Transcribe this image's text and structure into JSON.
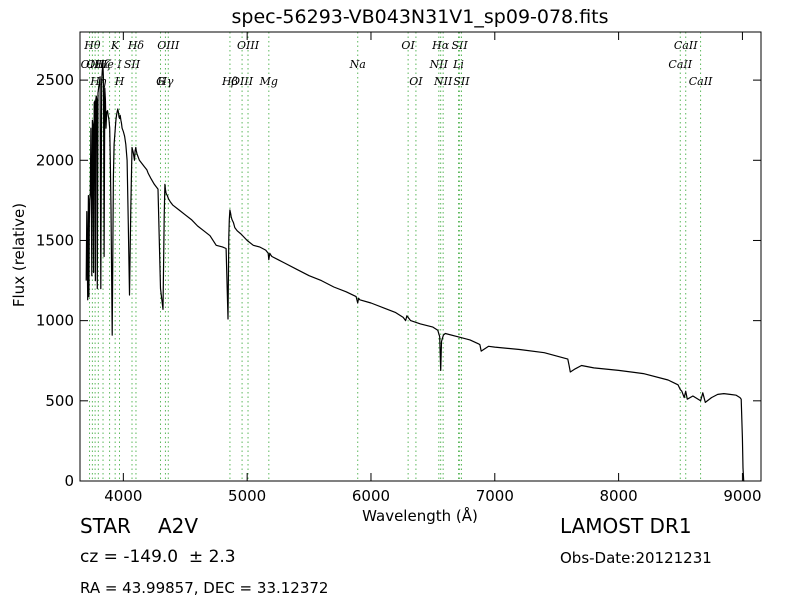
{
  "chart_data": {
    "type": "line",
    "title": "spec-56293-VB043N31V1_sp09-078.fits",
    "xlabel": "Wavelength (Å)",
    "ylabel": "Flux (relative)",
    "xlim": [
      3650,
      9150
    ],
    "ylim": [
      0,
      2800
    ],
    "x_ticks": [
      4000,
      5000,
      6000,
      7000,
      8000,
      9000
    ],
    "y_ticks": [
      0,
      500,
      1000,
      1500,
      2000,
      2500
    ],
    "grid": false,
    "series": [
      {
        "color": "#000000",
        "x": [
          3700,
          3705,
          3712,
          3718,
          3722,
          3725,
          3728,
          3733,
          3738,
          3745,
          3750,
          3755,
          3760,
          3765,
          3770,
          3774,
          3778,
          3782,
          3786,
          3790,
          3795,
          3800,
          3806,
          3812,
          3818,
          3825,
          3830,
          3835,
          3840,
          3845,
          3850,
          3855,
          3860,
          3866,
          3872,
          3878,
          3884,
          3890,
          3895,
          3900,
          3905,
          3910,
          3915,
          3920,
          3925,
          3930,
          3935,
          3940,
          3945,
          3950,
          3955,
          3960,
          3965,
          3970,
          3975,
          3980,
          3985,
          3990,
          4000,
          4010,
          4020,
          4030,
          4040,
          4050,
          4060,
          4070,
          4080,
          4090,
          4095,
          4101,
          4105,
          4110,
          4115,
          4120,
          4130,
          4150,
          4170,
          4190,
          4200,
          4220,
          4250,
          4280,
          4300,
          4320,
          4330,
          4336,
          4340,
          4344,
          4348,
          4355,
          4365,
          4380,
          4400,
          4450,
          4500,
          4550,
          4600,
          4650,
          4700,
          4750,
          4800,
          4830,
          4845,
          4852,
          4856,
          4861,
          4866,
          4870,
          4878,
          4890,
          4900,
          4920,
          4950,
          5000,
          5050,
          5100,
          5150,
          5170,
          5175,
          5183,
          5190,
          5200,
          5250,
          5300,
          5400,
          5500,
          5600,
          5700,
          5800,
          5880,
          5893,
          5900,
          5910,
          6000,
          6100,
          6200,
          6260,
          6280,
          6290,
          6300,
          6320,
          6400,
          6500,
          6540,
          6555,
          6563,
          6570,
          6585,
          6600,
          6700,
          6800,
          6870,
          6880,
          6890,
          6950,
          7000,
          7200,
          7400,
          7590,
          7600,
          7610,
          7650,
          7700,
          7800,
          8000,
          8200,
          8400,
          8480,
          8498,
          8510,
          8530,
          8542,
          8555,
          8600,
          8662,
          8680,
          8700,
          8750,
          8800,
          8850,
          8900,
          8950,
          8980,
          8990,
          9000,
          9005,
          9010,
          9015
        ],
        "y": [
          1250,
          1680,
          1130,
          1780,
          1150,
          1600,
          1750,
          1800,
          2200,
          1280,
          2250,
          2220,
          1300,
          2360,
          2370,
          1250,
          2380,
          2400,
          2380,
          1200,
          2420,
          2450,
          2480,
          2520,
          1200,
          2500,
          2560,
          2600,
          2500,
          1400,
          2450,
          2380,
          2200,
          2300,
          2310,
          2280,
          2250,
          2200,
          2000,
          1700,
          1300,
          910,
          1400,
          1900,
          2100,
          2150,
          2200,
          2250,
          2280,
          2300,
          2320,
          2300,
          2270,
          2260,
          2280,
          2250,
          2230,
          2200,
          2180,
          2150,
          2100,
          2000,
          1600,
          1160,
          1700,
          2080,
          2050,
          2000,
          2060,
          2080,
          2060,
          2040,
          2030,
          2020,
          2000,
          1980,
          1960,
          1940,
          1920,
          1890,
          1850,
          1820,
          1200,
          1070,
          1650,
          1850,
          1820,
          1800,
          1790,
          1780,
          1760,
          1740,
          1720,
          1690,
          1660,
          1630,
          1590,
          1560,
          1530,
          1470,
          1460,
          1450,
          1010,
          1520,
          1630,
          1690,
          1670,
          1650,
          1630,
          1610,
          1580,
          1560,
          1540,
          1500,
          1470,
          1460,
          1440,
          1420,
          1380,
          1420,
          1410,
          1400,
          1380,
          1360,
          1320,
          1280,
          1250,
          1210,
          1180,
          1150,
          1110,
          1140,
          1130,
          1110,
          1080,
          1050,
          1020,
          1000,
          1030,
          1020,
          1000,
          980,
          960,
          940,
          900,
          690,
          870,
          910,
          920,
          900,
          880,
          855,
          850,
          810,
          840,
          835,
          820,
          800,
          760,
          720,
          680,
          700,
          720,
          705,
          690,
          670,
          630,
          600,
          570,
          560,
          520,
          560,
          510,
          530,
          500,
          550,
          490,
          520,
          540,
          545,
          540,
          535,
          520,
          510,
          270,
          80,
          0,
          0
        ]
      }
    ],
    "line_labels": [
      {
        "x": 3727,
        "label": "OII",
        "row": 2
      },
      {
        "x": 3750,
        "label": "Hθ",
        "row": 1
      },
      {
        "x": 3772,
        "label": "OII",
        "row": 2
      },
      {
        "x": 3798,
        "label": "Hη",
        "row": 3
      },
      {
        "x": 3836,
        "label": "Hζ",
        "row": 2
      },
      {
        "x": 3889,
        "label": "He I",
        "row": 2
      },
      {
        "x": 3934,
        "label": "K",
        "row": 1
      },
      {
        "x": 3969,
        "label": "H",
        "row": 3
      },
      {
        "x": 4070,
        "label": "SII",
        "row": 2
      },
      {
        "x": 4102,
        "label": "Hδ",
        "row": 1
      },
      {
        "x": 4300,
        "label": "G",
        "row": 4
      },
      {
        "x": 4340,
        "label": "Hγ",
        "row": 3
      },
      {
        "x": 4363,
        "label": "OIII",
        "row": 1
      },
      {
        "x": 4861,
        "label": "Hβ",
        "row": 4
      },
      {
        "x": 4959,
        "label": "OIII",
        "row": 3
      },
      {
        "x": 5007,
        "label": "OIII",
        "row": 1
      },
      {
        "x": 5175,
        "label": "Mg",
        "row": 4
      },
      {
        "x": 5893,
        "label": "Na",
        "row": 2
      },
      {
        "x": 6300,
        "label": "OI",
        "row": 1
      },
      {
        "x": 6363,
        "label": "OI",
        "row": 3
      },
      {
        "x": 6548,
        "label": "NII",
        "row": 2
      },
      {
        "x": 6563,
        "label": "Hα",
        "row": 1
      },
      {
        "x": 6583,
        "label": "NII",
        "row": 4
      },
      {
        "x": 6716,
        "label": "SII",
        "row": 1
      },
      {
        "x": 6707,
        "label": "Li",
        "row": 2
      },
      {
        "x": 6731,
        "label": "SII",
        "row": 3
      },
      {
        "x": 8498,
        "label": "CaII",
        "row": 2
      },
      {
        "x": 8542,
        "label": "CaII",
        "row": 1
      },
      {
        "x": 8662,
        "label": "CaII",
        "row": 3
      }
    ]
  },
  "info": {
    "object_class": "STAR",
    "subclass": "A2V",
    "survey": "LAMOST DR1",
    "redshift": "cz = -149.0  ± 2.3",
    "obs_date": "Obs-Date:20121231",
    "coords": "RA = 43.99857, DEC = 33.12372"
  }
}
